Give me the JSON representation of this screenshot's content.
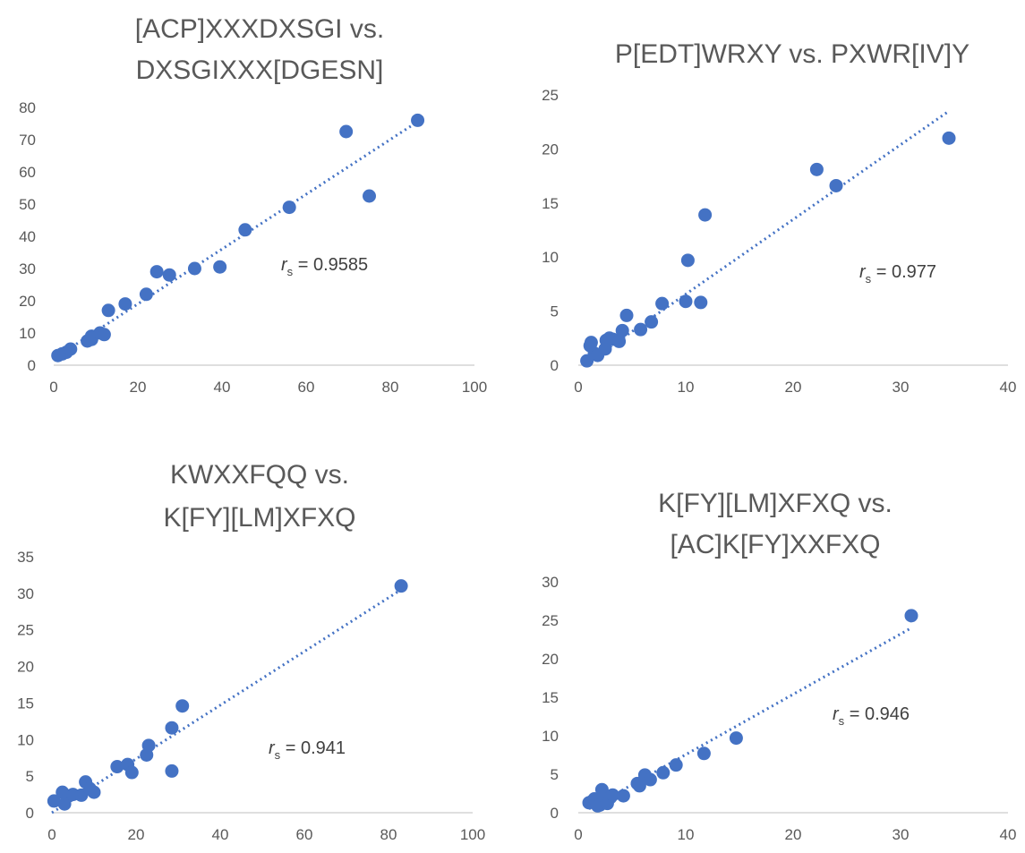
{
  "chart_data": [
    {
      "type": "scatter",
      "title_lines": [
        "[ACP]XXXDXSGI vs.",
        "DXSGIXXX[DGESN]"
      ],
      "xlim": [
        0,
        100
      ],
      "ylim": [
        0,
        80
      ],
      "xticks": [
        "0",
        "20",
        "40",
        "60",
        "80",
        "100"
      ],
      "yticks": [
        "0",
        "10",
        "20",
        "30",
        "40",
        "50",
        "60",
        "70",
        "80"
      ],
      "annotation": {
        "symbol": "r",
        "subscript": "s",
        "text": " = 0.9585"
      },
      "trendline": {
        "x0": 0,
        "y0": 2,
        "x1": 87,
        "y1": 76
      },
      "points": [
        [
          1,
          3
        ],
        [
          2,
          3.5
        ],
        [
          3,
          4
        ],
        [
          4,
          5
        ],
        [
          8,
          7.5
        ],
        [
          9,
          8
        ],
        [
          9,
          9
        ],
        [
          11,
          10
        ],
        [
          12,
          9.5
        ],
        [
          13,
          17
        ],
        [
          17,
          19
        ],
        [
          22,
          22
        ],
        [
          24.5,
          29
        ],
        [
          27.5,
          28
        ],
        [
          33.5,
          30
        ],
        [
          39.5,
          30.5
        ],
        [
          45.5,
          42
        ],
        [
          56,
          49
        ],
        [
          69.5,
          72.5
        ],
        [
          75,
          52.5
        ],
        [
          86.5,
          76
        ]
      ]
    },
    {
      "type": "scatter",
      "title_lines": [
        "P[EDT]WRXY vs. PXWR[IV]Y"
      ],
      "xlim": [
        0,
        40
      ],
      "ylim": [
        0,
        25
      ],
      "xticks": [
        "0",
        "10",
        "20",
        "30",
        "40"
      ],
      "yticks": [
        "0",
        "5",
        "10",
        "15",
        "20",
        "25"
      ],
      "annotation": {
        "symbol": "r",
        "subscript": "s",
        "text": " = 0.977"
      },
      "trendline": {
        "x0": 0.5,
        "y0": 0,
        "x1": 34.5,
        "y1": 23.5
      },
      "points": [
        [
          0.8,
          0.4
        ],
        [
          1.1,
          1.8
        ],
        [
          1.2,
          2.1
        ],
        [
          1.5,
          1.1
        ],
        [
          1.8,
          0.9
        ],
        [
          2.5,
          1.5
        ],
        [
          2.6,
          2.3
        ],
        [
          2.9,
          2.5
        ],
        [
          3.2,
          2.4
        ],
        [
          3.8,
          2.2
        ],
        [
          4.1,
          3.2
        ],
        [
          4.5,
          4.6
        ],
        [
          5.8,
          3.3
        ],
        [
          6.8,
          4.0
        ],
        [
          7.8,
          5.7
        ],
        [
          10.0,
          5.9
        ],
        [
          10.2,
          9.7
        ],
        [
          11.4,
          5.8
        ],
        [
          11.8,
          13.9
        ],
        [
          22.2,
          18.1
        ],
        [
          24.0,
          16.6
        ],
        [
          34.5,
          21.0
        ]
      ]
    },
    {
      "type": "scatter",
      "title_lines": [
        "KWXXFQQ  vs.",
        "K[FY][LM]XFXQ"
      ],
      "xlim": [
        0,
        100
      ],
      "ylim": [
        0,
        35
      ],
      "xticks": [
        "0",
        "20",
        "40",
        "60",
        "80",
        "100"
      ],
      "yticks": [
        "0",
        "5",
        "10",
        "15",
        "20",
        "25",
        "30",
        "35"
      ],
      "annotation": {
        "symbol": "r",
        "subscript": "s",
        "text": " = 0.941"
      },
      "trendline": {
        "x0": 0,
        "y0": 0,
        "x1": 83,
        "y1": 30.5
      },
      "points": [
        [
          0.5,
          1.6
        ],
        [
          2.5,
          2.8
        ],
        [
          3,
          1.2
        ],
        [
          4,
          2.3
        ],
        [
          5,
          2.5
        ],
        [
          7,
          2.4
        ],
        [
          8,
          4.2
        ],
        [
          9,
          3.3
        ],
        [
          10,
          2.8
        ],
        [
          15.5,
          6.3
        ],
        [
          18,
          6.6
        ],
        [
          19,
          5.5
        ],
        [
          22.5,
          7.9
        ],
        [
          23,
          9.2
        ],
        [
          28.5,
          5.7
        ],
        [
          28.5,
          11.6
        ],
        [
          31,
          14.6
        ],
        [
          83,
          31
        ]
      ]
    },
    {
      "type": "scatter",
      "title_lines": [
        "K[FY][LM]XFXQ vs.",
        "[AC]K[FY]XXFXQ"
      ],
      "xlim": [
        0,
        40
      ],
      "ylim": [
        0,
        30
      ],
      "xticks": [
        "0",
        "10",
        "20",
        "30",
        "40"
      ],
      "yticks": [
        "0",
        "5",
        "10",
        "15",
        "20",
        "25",
        "30"
      ],
      "annotation": {
        "symbol": "r",
        "subscript": "s",
        "text": " = 0.946"
      },
      "trendline": {
        "x0": 1,
        "y0": 0.5,
        "x1": 31,
        "y1": 24
      },
      "points": [
        [
          1,
          1.3
        ],
        [
          1.3,
          1.5
        ],
        [
          1.5,
          1.8
        ],
        [
          1.8,
          0.9
        ],
        [
          2,
          1.0
        ],
        [
          2.2,
          3.0
        ],
        [
          2.4,
          2.2
        ],
        [
          2.7,
          1.2
        ],
        [
          3,
          2.0
        ],
        [
          3.2,
          2.3
        ],
        [
          4.2,
          2.2
        ],
        [
          5.5,
          3.8
        ],
        [
          5.7,
          3.5
        ],
        [
          6.2,
          4.9
        ],
        [
          6.7,
          4.3
        ],
        [
          7.9,
          5.2
        ],
        [
          9.1,
          6.2
        ],
        [
          11.7,
          7.7
        ],
        [
          14.7,
          9.7
        ],
        [
          31,
          25.6
        ]
      ]
    }
  ]
}
